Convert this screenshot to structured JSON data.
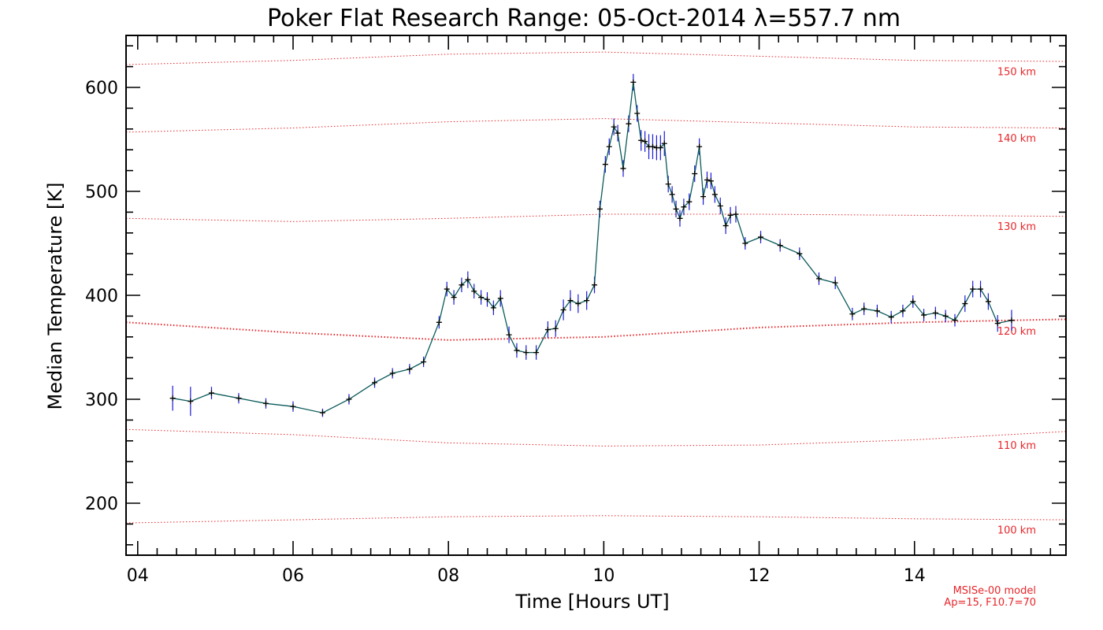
{
  "chart_data": {
    "type": "line",
    "title": "Poker Flat Research Range: 05-Oct-2014 λ=557.7 nm",
    "xlabel": "Time [Hours UT]",
    "ylabel": "Median Temperature [K]",
    "xlim": [
      3.85,
      15.95
    ],
    "ylim": [
      150,
      650
    ],
    "x_ticks": [
      4,
      6,
      8,
      10,
      12,
      14
    ],
    "x_tick_labels": [
      "04",
      "06",
      "08",
      "10",
      "12",
      "14"
    ],
    "y_ticks": [
      200,
      300,
      400,
      500,
      600
    ],
    "y_tick_labels": [
      "200",
      "300",
      "400",
      "500",
      "600"
    ],
    "line_color": "#0b5a5a",
    "marker_color": "#000000",
    "errorbar_color": "#1b1bd6",
    "model_color": "#e8262b",
    "series": [
      {
        "x": [
          4.45,
          4.68,
          4.95,
          5.3,
          5.65,
          6.0,
          6.38,
          6.72,
          7.05,
          7.28,
          7.5,
          7.68,
          7.88,
          7.98,
          8.07,
          8.17,
          8.25,
          8.33,
          8.42,
          8.5,
          8.58,
          8.67,
          8.78,
          8.88,
          9.0,
          9.13,
          9.28,
          9.38,
          9.48,
          9.57,
          9.67,
          9.78,
          9.88,
          9.95,
          10.02,
          10.07,
          10.13,
          10.18,
          10.25,
          10.32,
          10.38,
          10.43,
          10.48,
          10.53,
          10.58,
          10.63,
          10.68,
          10.73,
          10.78,
          10.83,
          10.88,
          10.93,
          10.98,
          11.03,
          11.1,
          11.17,
          11.23,
          11.28,
          11.33,
          11.38,
          11.43,
          11.5,
          11.57,
          11.63,
          11.7,
          11.82,
          12.02,
          12.27,
          12.52,
          12.77,
          12.98,
          13.2,
          13.35,
          13.52,
          13.7,
          13.85,
          13.98,
          14.12,
          14.27,
          14.4,
          14.52,
          14.65,
          14.75,
          14.85,
          14.95,
          15.07,
          15.25
        ],
        "y": [
          301,
          298,
          306,
          301,
          296,
          293,
          287,
          300,
          316,
          325,
          329,
          336,
          374,
          406,
          398,
          410,
          415,
          404,
          398,
          396,
          388,
          397,
          362,
          347,
          345,
          345,
          367,
          368,
          386,
          395,
          392,
          395,
          410,
          483,
          526,
          543,
          562,
          556,
          522,
          565,
          605,
          575,
          549,
          548,
          543,
          543,
          542,
          542,
          546,
          507,
          497,
          483,
          474,
          485,
          490,
          517,
          543,
          495,
          511,
          510,
          497,
          486,
          467,
          477,
          478,
          450,
          456,
          448,
          440,
          416,
          412,
          382,
          387,
          385,
          379,
          385,
          394,
          381,
          383,
          380,
          376,
          392,
          406,
          406,
          394,
          373,
          376
        ],
        "err": [
          12,
          14,
          6,
          5,
          5,
          5,
          4,
          5,
          5,
          5,
          5,
          5,
          6,
          7,
          7,
          7,
          8,
          7,
          7,
          7,
          7,
          8,
          8,
          7,
          7,
          7,
          8,
          8,
          10,
          10,
          9,
          9,
          8,
          8,
          8,
          8,
          8,
          8,
          8,
          8,
          8,
          8,
          10,
          10,
          12,
          12,
          12,
          12,
          12,
          8,
          8,
          8,
          8,
          8,
          8,
          8,
          8,
          8,
          8,
          8,
          8,
          8,
          8,
          8,
          8,
          6,
          6,
          6,
          6,
          6,
          6,
          6,
          6,
          6,
          6,
          6,
          6,
          6,
          6,
          6,
          6,
          8,
          8,
          8,
          8,
          8,
          10
        ]
      }
    ],
    "model_curves": [
      {
        "label": "150 km",
        "x": [
          3.85,
          6,
          8,
          10,
          12,
          14,
          15.95
        ],
        "y": [
          622,
          626,
          632,
          634,
          630,
          626,
          625
        ],
        "width": 1
      },
      {
        "label": "140 km",
        "x": [
          3.85,
          6,
          8,
          10,
          12,
          14,
          15.95
        ],
        "y": [
          557,
          561,
          567,
          570,
          566,
          562,
          561
        ],
        "width": 1
      },
      {
        "label": "130 km",
        "x": [
          3.85,
          6,
          8,
          10,
          12,
          14,
          15.95
        ],
        "y": [
          474,
          471,
          474,
          478,
          478,
          477,
          476
        ],
        "width": 1
      },
      {
        "label": "120 km",
        "x": [
          3.85,
          6,
          8,
          10,
          12,
          14,
          15.95
        ],
        "y": [
          374,
          364,
          357,
          360,
          369,
          374,
          377
        ],
        "width": 2
      },
      {
        "label": "110 km",
        "x": [
          3.85,
          6,
          8,
          10,
          12,
          14,
          15.95
        ],
        "y": [
          271,
          266,
          258,
          255,
          256,
          261,
          269
        ],
        "width": 1
      },
      {
        "label": "100 km",
        "x": [
          3.85,
          6,
          8,
          10,
          12,
          14,
          15.95
        ],
        "y": [
          181,
          184,
          187,
          188,
          187,
          185,
          184
        ],
        "width": 1
      }
    ],
    "model_note": [
      "MSISe-00 model",
      "Ap=15, F10.7=70"
    ]
  }
}
